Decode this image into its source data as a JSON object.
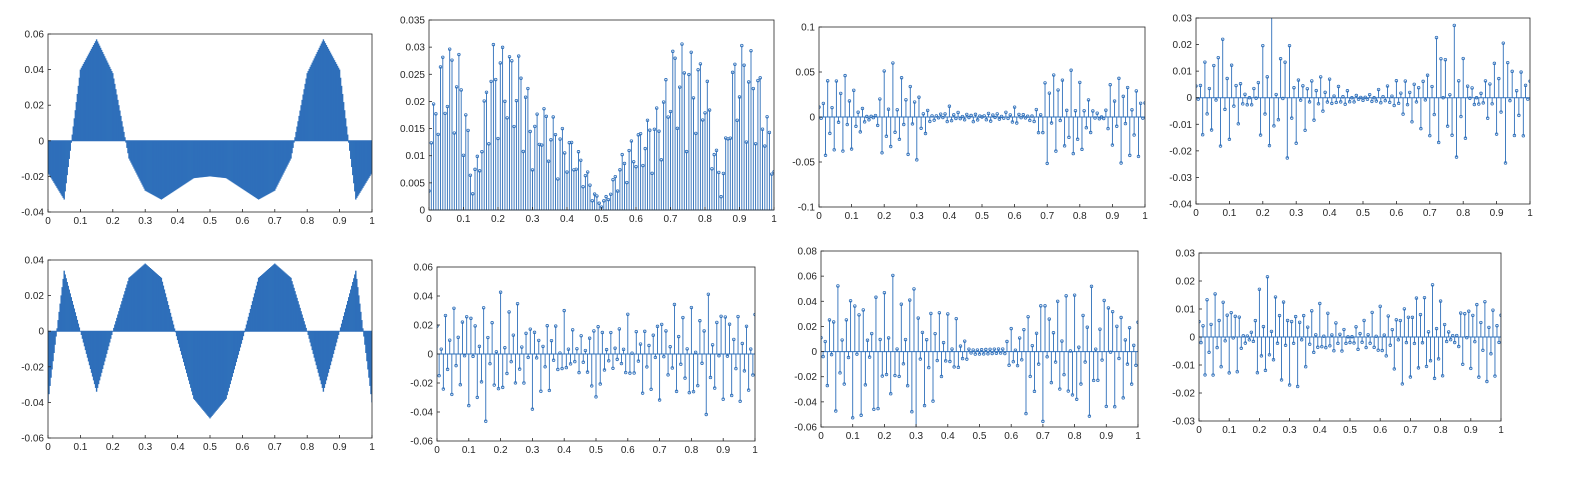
{
  "figure": {
    "background": "#ffffff"
  },
  "chart_data": [
    {
      "type": "line",
      "style": "filled-stem",
      "color": "#2e6fba",
      "title": "",
      "xlabel": "",
      "ylabel": "",
      "xlim": [
        0,
        1
      ],
      "ylim": [
        -0.04,
        0.06
      ],
      "xticks": [
        "0",
        "0.1",
        "0.2",
        "0.3",
        "0.4",
        "0.5",
        "0.6",
        "0.7",
        "0.8",
        "0.9",
        "1"
      ],
      "yticks": [
        "-0.04",
        "-0.02",
        "0",
        "0.02",
        "0.04",
        "0.06"
      ],
      "x": [
        0,
        0.05,
        0.1,
        0.15,
        0.2,
        0.25,
        0.3,
        0.35,
        0.4,
        0.45,
        0.5,
        0.55,
        0.6,
        0.65,
        0.7,
        0.75,
        0.8,
        0.85,
        0.9,
        0.95,
        1
      ],
      "y": [
        -0.018,
        -0.033,
        0.04,
        0.057,
        0.038,
        -0.01,
        -0.028,
        -0.033,
        -0.027,
        -0.021,
        -0.02,
        -0.021,
        -0.027,
        -0.033,
        -0.028,
        -0.01,
        0.038,
        0.057,
        0.04,
        -0.033,
        -0.018
      ]
    },
    {
      "type": "line",
      "style": "stem-markers",
      "color": "#2e6fba",
      "title": "",
      "xlabel": "",
      "ylabel": "",
      "xlim": [
        0,
        1
      ],
      "ylim": [
        0,
        0.035
      ],
      "xticks": [
        "0",
        "0.1",
        "0.2",
        "0.3",
        "0.4",
        "0.5",
        "0.6",
        "0.7",
        "0.8",
        "0.9",
        "1"
      ],
      "yticks": [
        "0",
        "0.005",
        "0.01",
        "0.015",
        "0.02",
        "0.025",
        "0.03",
        "0.035"
      ],
      "x": [
        0,
        0.025,
        0.05,
        0.075,
        0.1,
        0.125,
        0.15,
        0.175,
        0.2,
        0.225,
        0.25,
        0.275,
        0.3,
        0.325,
        0.35,
        0.375,
        0.4,
        0.425,
        0.45,
        0.475,
        0.5,
        0.525,
        0.55,
        0.575,
        0.6,
        0.625,
        0.65,
        0.675,
        0.7,
        0.725,
        0.75,
        0.775,
        0.8,
        0.825,
        0.85,
        0.875,
        0.9,
        0.925,
        0.95,
        0.975,
        1
      ],
      "y": [
        0.01,
        0.028,
        0.03,
        0.031,
        0.026,
        0.005,
        0.014,
        0.03,
        0.031,
        0.03,
        0.029,
        0.028,
        0.016,
        0.02,
        0.018,
        0.016,
        0.014,
        0.012,
        0.009,
        0.004,
        0.001,
        0.004,
        0.009,
        0.012,
        0.014,
        0.016,
        0.018,
        0.02,
        0.03,
        0.031,
        0.03,
        0.028,
        0.028,
        0.014,
        0.005,
        0.026,
        0.031,
        0.03,
        0.028,
        0.02,
        0.01
      ]
    },
    {
      "type": "line",
      "style": "stem-markers",
      "color": "#2e6fba",
      "title": "",
      "xlabel": "",
      "ylabel": "",
      "xlim": [
        0,
        1
      ],
      "ylim": [
        -0.1,
        0.1
      ],
      "xticks": [
        "0",
        "0.1",
        "0.2",
        "0.3",
        "0.4",
        "0.5",
        "0.6",
        "0.7",
        "0.8",
        "0.9",
        "1"
      ],
      "yticks": [
        "-0.1",
        "-0.05",
        "0",
        "0.05",
        "0.1"
      ],
      "x": [
        0,
        0.025,
        0.05,
        0.075,
        0.1,
        0.125,
        0.15,
        0.175,
        0.2,
        0.225,
        0.25,
        0.275,
        0.3,
        0.325,
        0.35,
        0.375,
        0.4,
        0.425,
        0.45,
        0.475,
        0.5,
        0.525,
        0.55,
        0.575,
        0.6,
        0.625,
        0.65,
        0.675,
        0.7,
        0.725,
        0.75,
        0.775,
        0.8,
        0.825,
        0.85,
        0.875,
        0.9,
        0.925,
        0.95,
        0.975,
        1
      ],
      "y": [
        0.02,
        -0.06,
        0.06,
        -0.07,
        0.05,
        -0.02,
        0.004,
        -0.003,
        0.06,
        -0.07,
        0.06,
        -0.06,
        0.05,
        -0.02,
        0.005,
        -0.004,
        0.012,
        -0.006,
        0.005,
        -0.006,
        0.0,
        -0.006,
        0.005,
        -0.006,
        0.012,
        -0.004,
        0.005,
        -0.02,
        0.065,
        -0.075,
        0.06,
        -0.07,
        0.06,
        -0.03,
        0.006,
        -0.003,
        0.05,
        -0.07,
        0.06,
        -0.06,
        0.02
      ]
    },
    {
      "type": "line",
      "style": "stem-markers",
      "color": "#2e6fba",
      "title": "",
      "xlabel": "",
      "ylabel": "",
      "xlim": [
        0,
        1
      ],
      "ylim": [
        -0.04,
        0.03
      ],
      "xticks": [
        "0",
        "0.1",
        "0.2",
        "0.3",
        "0.4",
        "0.5",
        "0.6",
        "0.7",
        "0.8",
        "0.9",
        "1"
      ],
      "yticks": [
        "-0.04",
        "-0.03",
        "-0.02",
        "-0.01",
        "0",
        "0.01",
        "0.02",
        "0.03"
      ],
      "x": [
        0,
        0.025,
        0.05,
        0.075,
        0.1,
        0.125,
        0.15,
        0.175,
        0.2,
        0.225,
        0.25,
        0.275,
        0.3,
        0.325,
        0.35,
        0.375,
        0.4,
        0.425,
        0.45,
        0.475,
        0.5,
        0.525,
        0.55,
        0.575,
        0.6,
        0.625,
        0.65,
        0.675,
        0.7,
        0.725,
        0.75,
        0.775,
        0.8,
        0.825,
        0.85,
        0.875,
        0.9,
        0.925,
        0.95,
        0.975,
        1
      ],
      "y": [
        0.008,
        -0.02,
        0.02,
        -0.033,
        0.022,
        -0.012,
        0.004,
        -0.006,
        0.023,
        -0.036,
        0.022,
        -0.032,
        0.018,
        -0.014,
        0.012,
        -0.01,
        0.007,
        -0.005,
        0.004,
        -0.002,
        0.001,
        -0.002,
        0.004,
        -0.005,
        0.007,
        -0.01,
        0.012,
        -0.014,
        0.018,
        -0.033,
        0.022,
        -0.036,
        0.023,
        -0.006,
        0.004,
        -0.012,
        0.022,
        -0.033,
        0.02,
        -0.02,
        0.008
      ]
    },
    {
      "type": "line",
      "style": "filled-stem",
      "color": "#2e6fba",
      "title": "",
      "xlabel": "",
      "ylabel": "",
      "xlim": [
        0,
        1
      ],
      "ylim": [
        -0.06,
        0.04
      ],
      "xticks": [
        "0",
        "0.1",
        "0.2",
        "0.3",
        "0.4",
        "0.5",
        "0.6",
        "0.7",
        "0.8",
        "0.9",
        "1"
      ],
      "yticks": [
        "-0.06",
        "-0.04",
        "-0.02",
        "0",
        "0.02",
        "0.04"
      ],
      "x": [
        0,
        0.05,
        0.1,
        0.15,
        0.2,
        0.25,
        0.3,
        0.35,
        0.4,
        0.45,
        0.5,
        0.55,
        0.6,
        0.65,
        0.7,
        0.75,
        0.8,
        0.85,
        0.9,
        0.95,
        1
      ],
      "y": [
        -0.04,
        0.034,
        0.0,
        -0.034,
        0.0,
        0.03,
        0.038,
        0.03,
        -0.005,
        -0.038,
        -0.049,
        -0.038,
        -0.005,
        0.03,
        0.038,
        0.03,
        0.0,
        -0.034,
        0.0,
        0.034,
        -0.04
      ]
    },
    {
      "type": "line",
      "style": "stem-markers",
      "color": "#2e6fba",
      "title": "",
      "xlabel": "",
      "ylabel": "",
      "xlim": [
        0,
        1
      ],
      "ylim": [
        -0.06,
        0.06
      ],
      "xticks": [
        "0",
        "0.1",
        "0.2",
        "0.3",
        "0.4",
        "0.5",
        "0.6",
        "0.7",
        "0.8",
        "0.9",
        "1"
      ],
      "yticks": [
        "-0.06",
        "-0.04",
        "-0.02",
        "0",
        "0.02",
        "0.04",
        "0.06"
      ],
      "x": [
        0,
        0.025,
        0.05,
        0.075,
        0.1,
        0.125,
        0.15,
        0.175,
        0.2,
        0.225,
        0.25,
        0.275,
        0.3,
        0.325,
        0.35,
        0.375,
        0.4,
        0.425,
        0.45,
        0.475,
        0.5,
        0.525,
        0.55,
        0.575,
        0.6,
        0.625,
        0.65,
        0.675,
        0.7,
        0.725,
        0.75,
        0.775,
        0.8,
        0.825,
        0.85,
        0.875,
        0.9,
        0.925,
        0.95,
        0.975,
        1
      ],
      "y": [
        0.035,
        -0.04,
        0.045,
        -0.04,
        0.05,
        -0.04,
        0.06,
        -0.04,
        0.05,
        -0.035,
        0.045,
        -0.03,
        0.04,
        -0.03,
        0.035,
        -0.025,
        0.03,
        -0.02,
        0.02,
        -0.015,
        -0.03,
        -0.015,
        0.02,
        -0.02,
        0.03,
        -0.025,
        0.035,
        -0.03,
        0.04,
        -0.03,
        0.045,
        -0.035,
        0.05,
        -0.04,
        0.06,
        -0.04,
        0.05,
        -0.04,
        0.045,
        -0.04,
        0.035
      ]
    },
    {
      "type": "line",
      "style": "stem-markers",
      "color": "#2e6fba",
      "title": "",
      "xlabel": "",
      "ylabel": "",
      "xlim": [
        0,
        1
      ],
      "ylim": [
        -0.06,
        0.08
      ],
      "xticks": [
        "0",
        "0.1",
        "0.2",
        "0.3",
        "0.4",
        "0.5",
        "0.6",
        "0.7",
        "0.8",
        "0.9",
        "1"
      ],
      "yticks": [
        "-0.06",
        "-0.04",
        "-0.02",
        "0",
        "0.02",
        "0.04",
        "0.06",
        "0.08"
      ],
      "x": [
        0,
        0.025,
        0.05,
        0.075,
        0.1,
        0.125,
        0.15,
        0.175,
        0.2,
        0.225,
        0.25,
        0.275,
        0.3,
        0.325,
        0.35,
        0.375,
        0.4,
        0.425,
        0.45,
        0.475,
        0.5,
        0.525,
        0.55,
        0.575,
        0.6,
        0.625,
        0.65,
        0.675,
        0.7,
        0.725,
        0.75,
        0.775,
        0.8,
        0.825,
        0.85,
        0.875,
        0.9,
        0.925,
        0.95,
        0.975,
        1
      ],
      "y": [
        0.02,
        -0.04,
        0.072,
        -0.05,
        0.074,
        -0.06,
        -0.006,
        0.072,
        -0.055,
        0.07,
        -0.05,
        0.04,
        0.07,
        -0.05,
        0.055,
        -0.04,
        0.03,
        -0.03,
        0.012,
        -0.002,
        -0.002,
        -0.002,
        -0.002,
        -0.002,
        0.02,
        -0.02,
        0.06,
        -0.04,
        0.07,
        -0.05,
        0.055,
        -0.06,
        0.07,
        -0.05,
        0.074,
        -0.04,
        0.07,
        -0.06,
        0.05,
        -0.04,
        0.03
      ]
    },
    {
      "type": "line",
      "style": "stem-markers",
      "color": "#2e6fba",
      "title": "",
      "xlabel": "",
      "ylabel": "",
      "xlim": [
        0,
        1
      ],
      "ylim": [
        -0.03,
        0.03
      ],
      "xticks": [
        "0",
        "0.1",
        "0.2",
        "0.3",
        "0.4",
        "0.5",
        "0.6",
        "0.7",
        "0.8",
        "0.9",
        "1"
      ],
      "yticks": [
        "-0.03",
        "-0.02",
        "-0.01",
        "0",
        "0.01",
        "0.02",
        "0.03"
      ],
      "x": [
        0,
        0.025,
        0.05,
        0.075,
        0.1,
        0.125,
        0.15,
        0.175,
        0.2,
        0.225,
        0.25,
        0.275,
        0.3,
        0.325,
        0.35,
        0.375,
        0.4,
        0.425,
        0.45,
        0.475,
        0.5,
        0.525,
        0.55,
        0.575,
        0.6,
        0.625,
        0.65,
        0.675,
        0.7,
        0.725,
        0.75,
        0.775,
        0.8,
        0.825,
        0.85,
        0.875,
        0.9,
        0.925,
        0.95,
        0.975,
        1
      ],
      "y": [
        0.01,
        -0.02,
        0.022,
        -0.02,
        0.018,
        -0.015,
        0.003,
        -0.003,
        0.02,
        -0.025,
        0.02,
        -0.022,
        0.018,
        -0.02,
        0.015,
        -0.012,
        0.012,
        -0.01,
        0.008,
        -0.006,
        0.002,
        -0.006,
        0.008,
        -0.01,
        0.012,
        -0.012,
        0.015,
        -0.02,
        0.018,
        -0.022,
        0.02,
        -0.025,
        0.02,
        -0.003,
        0.003,
        -0.015,
        0.018,
        -0.02,
        0.022,
        -0.02,
        0.01
      ]
    }
  ]
}
